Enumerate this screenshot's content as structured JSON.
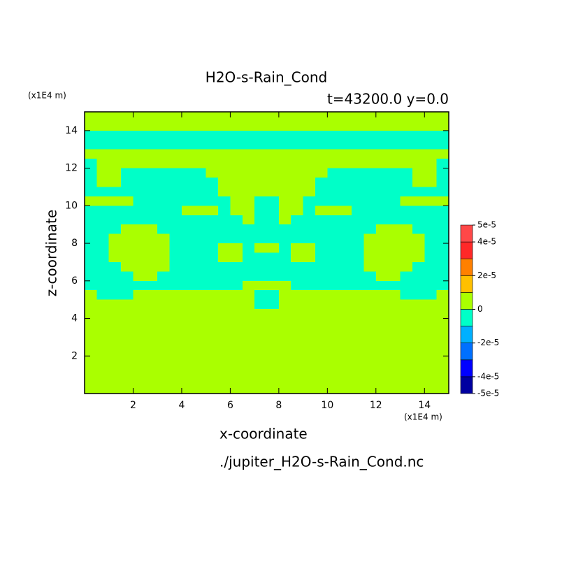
{
  "chart_data": {
    "type": "contour",
    "title": "H2O-s-Rain_Cond",
    "subtitle": "t=43200.0 y=0.0",
    "x_label": "x-coordinate",
    "y_label": "z-coordinate",
    "x_unit": "(x1E4 m)",
    "y_unit": "(x1E4 m)",
    "source": "./jupiter_H2O-s-Rain_Cond.nc",
    "xlim": [
      0,
      15
    ],
    "ylim": [
      0,
      15
    ],
    "xticks": [
      2,
      4,
      6,
      8,
      10,
      12,
      14
    ],
    "yticks": [
      2,
      4,
      6,
      8,
      10,
      12,
      14
    ],
    "x": [
      0.25,
      0.75,
      1.25,
      1.75,
      2.25,
      2.75,
      3.25,
      3.75,
      4.25,
      4.75,
      5.25,
      5.75,
      6.25,
      6.75,
      7.25,
      7.75,
      8.25,
      8.75,
      9.25,
      9.75,
      10.25,
      10.75,
      11.25,
      11.75,
      12.25,
      12.75,
      13.25,
      13.75,
      14.25,
      14.75
    ],
    "y": [
      14.75,
      14.25,
      13.75,
      13.25,
      12.75,
      12.25,
      11.75,
      11.25,
      10.75,
      10.25,
      9.75,
      9.25,
      8.75,
      8.25,
      7.75,
      7.25,
      6.75,
      6.25,
      5.75,
      5.25,
      4.75,
      4.25,
      3.75,
      3.25,
      2.75,
      2.25,
      1.75,
      1.25,
      0.75,
      0.25
    ],
    "z": [
      [
        5e-06,
        5e-06,
        5e-06,
        5e-06,
        5e-06,
        5e-06,
        5e-06,
        5e-06,
        5e-06,
        5e-06,
        5e-06,
        5e-06,
        5e-06,
        5e-06,
        5e-06,
        5e-06,
        5e-06,
        5e-06,
        5e-06,
        5e-06,
        5e-06,
        5e-06,
        5e-06,
        5e-06,
        5e-06,
        5e-06,
        5e-06,
        5e-06,
        5e-06,
        5e-06
      ],
      [
        5e-06,
        5e-06,
        5e-06,
        5e-06,
        5e-06,
        5e-06,
        5e-06,
        5e-06,
        5e-06,
        5e-06,
        5e-06,
        5e-06,
        5e-06,
        5e-06,
        5e-06,
        5e-06,
        5e-06,
        5e-06,
        5e-06,
        5e-06,
        5e-06,
        5e-06,
        5e-06,
        5e-06,
        5e-06,
        5e-06,
        5e-06,
        5e-06,
        5e-06,
        5e-06
      ],
      [
        -5e-06,
        -5e-06,
        -5e-06,
        -5e-06,
        -5e-06,
        -5e-06,
        -5e-06,
        -5e-06,
        -5e-06,
        -5e-06,
        -5e-06,
        -5e-06,
        -5e-06,
        -5e-06,
        -5e-06,
        -5e-06,
        -5e-06,
        -5e-06,
        -5e-06,
        -5e-06,
        -5e-06,
        -5e-06,
        -5e-06,
        -5e-06,
        -5e-06,
        -5e-06,
        -5e-06,
        -5e-06,
        -5e-06,
        -5e-06
      ],
      [
        -5e-06,
        -5e-06,
        -5e-06,
        -5e-06,
        -5e-06,
        -5e-06,
        -5e-06,
        -5e-06,
        -5e-06,
        -5e-06,
        -5e-06,
        -5e-06,
        -5e-06,
        -5e-06,
        -5e-06,
        -5e-06,
        -5e-06,
        -5e-06,
        -5e-06,
        -5e-06,
        -5e-06,
        -5e-06,
        -5e-06,
        -5e-06,
        -5e-06,
        -5e-06,
        -5e-06,
        -5e-06,
        -5e-06,
        -5e-06
      ],
      [
        5e-06,
        5e-06,
        5e-06,
        5e-06,
        5e-06,
        5e-06,
        5e-06,
        5e-06,
        5e-06,
        5e-06,
        5e-06,
        5e-06,
        5e-06,
        5e-06,
        5e-06,
        5e-06,
        5e-06,
        5e-06,
        5e-06,
        5e-06,
        5e-06,
        5e-06,
        5e-06,
        5e-06,
        5e-06,
        5e-06,
        5e-06,
        5e-06,
        5e-06,
        5e-06
      ],
      [
        -5e-06,
        5e-06,
        5e-06,
        5e-06,
        5e-06,
        5e-06,
        5e-06,
        5e-06,
        5e-06,
        5e-06,
        5e-06,
        5e-06,
        5e-06,
        5e-06,
        5e-06,
        5e-06,
        5e-06,
        5e-06,
        5e-06,
        5e-06,
        5e-06,
        5e-06,
        5e-06,
        5e-06,
        5e-06,
        5e-06,
        5e-06,
        5e-06,
        5e-06,
        -5e-06
      ],
      [
        -5e-06,
        5e-06,
        5e-06,
        -5e-06,
        -5e-06,
        -5e-06,
        -5e-06,
        -5e-06,
        -5e-06,
        -5e-06,
        5e-06,
        5e-06,
        5e-06,
        5e-06,
        5e-06,
        5e-06,
        5e-06,
        5e-06,
        5e-06,
        5e-06,
        -5e-06,
        -5e-06,
        -5e-06,
        -5e-06,
        -5e-06,
        -5e-06,
        -5e-06,
        5e-06,
        5e-06,
        -5e-06
      ],
      [
        -5e-06,
        5e-06,
        5e-06,
        -5e-06,
        -5e-06,
        -5e-06,
        -5e-06,
        -5e-06,
        -5e-06,
        -5e-06,
        -5e-06,
        5e-06,
        5e-06,
        5e-06,
        5e-06,
        5e-06,
        5e-06,
        5e-06,
        5e-06,
        -5e-06,
        -5e-06,
        -5e-06,
        -5e-06,
        -5e-06,
        -5e-06,
        -5e-06,
        -5e-06,
        5e-06,
        5e-06,
        -5e-06
      ],
      [
        -5e-06,
        -5e-06,
        -5e-06,
        -5e-06,
        -5e-06,
        -5e-06,
        -5e-06,
        -5e-06,
        -5e-06,
        -5e-06,
        -5e-06,
        5e-06,
        5e-06,
        5e-06,
        5e-06,
        5e-06,
        5e-06,
        5e-06,
        5e-06,
        -5e-06,
        -5e-06,
        -5e-06,
        -5e-06,
        -5e-06,
        -5e-06,
        -5e-06,
        -5e-06,
        -5e-06,
        -5e-06,
        -5e-06
      ],
      [
        5e-06,
        5e-06,
        5e-06,
        5e-06,
        -5e-06,
        -5e-06,
        -5e-06,
        -5e-06,
        -5e-06,
        -5e-06,
        -5e-06,
        -5e-06,
        5e-06,
        5e-06,
        -5e-06,
        -5e-06,
        5e-06,
        5e-06,
        -5e-06,
        -5e-06,
        -5e-06,
        -5e-06,
        -5e-06,
        -5e-06,
        -5e-06,
        -5e-06,
        5e-06,
        5e-06,
        5e-06,
        5e-06
      ],
      [
        -5e-06,
        -5e-06,
        -5e-06,
        -5e-06,
        -5e-06,
        -5e-06,
        -5e-06,
        -5e-06,
        5e-06,
        5e-06,
        5e-06,
        -5e-06,
        5e-06,
        5e-06,
        -5e-06,
        -5e-06,
        5e-06,
        5e-06,
        -5e-06,
        5e-06,
        5e-06,
        5e-06,
        -5e-06,
        -5e-06,
        -5e-06,
        -5e-06,
        -5e-06,
        -5e-06,
        -5e-06,
        -5e-06
      ],
      [
        -5e-06,
        -5e-06,
        -5e-06,
        -5e-06,
        -5e-06,
        -5e-06,
        -5e-06,
        -5e-06,
        -5e-06,
        -5e-06,
        -5e-06,
        -5e-06,
        -5e-06,
        5e-06,
        -5e-06,
        -5e-06,
        5e-06,
        -5e-06,
        -5e-06,
        -5e-06,
        -5e-06,
        -5e-06,
        -5e-06,
        -5e-06,
        -5e-06,
        -5e-06,
        -5e-06,
        -5e-06,
        -5e-06,
        -5e-06
      ],
      [
        -5e-06,
        -5e-06,
        -5e-06,
        5e-06,
        5e-06,
        5e-06,
        -5e-06,
        -5e-06,
        -5e-06,
        -5e-06,
        -5e-06,
        -5e-06,
        -5e-06,
        -5e-06,
        -5e-06,
        -5e-06,
        -5e-06,
        -5e-06,
        -5e-06,
        -5e-06,
        -5e-06,
        -5e-06,
        -5e-06,
        -5e-06,
        5e-06,
        5e-06,
        5e-06,
        -5e-06,
        -5e-06,
        -5e-06
      ],
      [
        -5e-06,
        -5e-06,
        5e-06,
        5e-06,
        5e-06,
        5e-06,
        5e-06,
        -5e-06,
        -5e-06,
        -5e-06,
        -5e-06,
        -5e-06,
        -5e-06,
        -5e-06,
        -5e-06,
        -5e-06,
        -5e-06,
        -5e-06,
        -5e-06,
        -5e-06,
        -5e-06,
        -5e-06,
        -5e-06,
        5e-06,
        5e-06,
        5e-06,
        5e-06,
        5e-06,
        -5e-06,
        -5e-06
      ],
      [
        -5e-06,
        -5e-06,
        5e-06,
        5e-06,
        5e-06,
        5e-06,
        5e-06,
        -5e-06,
        -5e-06,
        -5e-06,
        -5e-06,
        5e-06,
        5e-06,
        -5e-06,
        5e-06,
        5e-06,
        -5e-06,
        5e-06,
        5e-06,
        -5e-06,
        -5e-06,
        -5e-06,
        -5e-06,
        5e-06,
        5e-06,
        5e-06,
        5e-06,
        5e-06,
        -5e-06,
        -5e-06
      ],
      [
        -5e-06,
        -5e-06,
        5e-06,
        5e-06,
        5e-06,
        5e-06,
        5e-06,
        -5e-06,
        -5e-06,
        -5e-06,
        -5e-06,
        5e-06,
        5e-06,
        -5e-06,
        -5e-06,
        -5e-06,
        -5e-06,
        5e-06,
        5e-06,
        -5e-06,
        -5e-06,
        -5e-06,
        -5e-06,
        5e-06,
        5e-06,
        5e-06,
        5e-06,
        5e-06,
        -5e-06,
        -5e-06
      ],
      [
        -5e-06,
        -5e-06,
        -5e-06,
        5e-06,
        5e-06,
        5e-06,
        5e-06,
        -5e-06,
        -5e-06,
        -5e-06,
        -5e-06,
        -5e-06,
        -5e-06,
        -5e-06,
        -5e-06,
        -5e-06,
        -5e-06,
        -5e-06,
        -5e-06,
        -5e-06,
        -5e-06,
        -5e-06,
        -5e-06,
        5e-06,
        5e-06,
        5e-06,
        5e-06,
        -5e-06,
        -5e-06,
        -5e-06
      ],
      [
        -5e-06,
        -5e-06,
        -5e-06,
        -5e-06,
        5e-06,
        5e-06,
        -5e-06,
        -5e-06,
        -5e-06,
        -5e-06,
        -5e-06,
        -5e-06,
        -5e-06,
        -5e-06,
        -5e-06,
        -5e-06,
        -5e-06,
        -5e-06,
        -5e-06,
        -5e-06,
        -5e-06,
        -5e-06,
        -5e-06,
        -5e-06,
        5e-06,
        5e-06,
        -5e-06,
        -5e-06,
        -5e-06,
        -5e-06
      ],
      [
        -5e-06,
        -5e-06,
        -5e-06,
        -5e-06,
        -5e-06,
        -5e-06,
        -5e-06,
        -5e-06,
        -5e-06,
        -5e-06,
        -5e-06,
        -5e-06,
        -5e-06,
        5e-06,
        5e-06,
        5e-06,
        5e-06,
        -5e-06,
        -5e-06,
        -5e-06,
        -5e-06,
        -5e-06,
        -5e-06,
        -5e-06,
        -5e-06,
        -5e-06,
        -5e-06,
        -5e-06,
        -5e-06,
        -5e-06
      ],
      [
        5e-06,
        -5e-06,
        -5e-06,
        -5e-06,
        5e-06,
        5e-06,
        5e-06,
        5e-06,
        5e-06,
        5e-06,
        5e-06,
        5e-06,
        5e-06,
        5e-06,
        -5e-06,
        -5e-06,
        5e-06,
        5e-06,
        5e-06,
        5e-06,
        5e-06,
        5e-06,
        5e-06,
        5e-06,
        5e-06,
        5e-06,
        -5e-06,
        -5e-06,
        -5e-06,
        5e-06
      ],
      [
        5e-06,
        5e-06,
        5e-06,
        5e-06,
        5e-06,
        5e-06,
        5e-06,
        5e-06,
        5e-06,
        5e-06,
        5e-06,
        5e-06,
        5e-06,
        5e-06,
        -5e-06,
        -5e-06,
        5e-06,
        5e-06,
        5e-06,
        5e-06,
        5e-06,
        5e-06,
        5e-06,
        5e-06,
        5e-06,
        5e-06,
        5e-06,
        5e-06,
        5e-06,
        5e-06
      ],
      [
        5e-06,
        5e-06,
        5e-06,
        5e-06,
        5e-06,
        5e-06,
        5e-06,
        5e-06,
        5e-06,
        5e-06,
        5e-06,
        5e-06,
        5e-06,
        5e-06,
        5e-06,
        5e-06,
        5e-06,
        5e-06,
        5e-06,
        5e-06,
        5e-06,
        5e-06,
        5e-06,
        5e-06,
        5e-06,
        5e-06,
        5e-06,
        5e-06,
        5e-06,
        5e-06
      ],
      [
        5e-06,
        5e-06,
        5e-06,
        5e-06,
        5e-06,
        5e-06,
        5e-06,
        5e-06,
        5e-06,
        5e-06,
        5e-06,
        5e-06,
        5e-06,
        5e-06,
        5e-06,
        5e-06,
        5e-06,
        5e-06,
        5e-06,
        5e-06,
        5e-06,
        5e-06,
        5e-06,
        5e-06,
        5e-06,
        5e-06,
        5e-06,
        5e-06,
        5e-06,
        5e-06
      ],
      [
        5e-06,
        5e-06,
        5e-06,
        5e-06,
        5e-06,
        5e-06,
        5e-06,
        5e-06,
        5e-06,
        5e-06,
        5e-06,
        5e-06,
        5e-06,
        5e-06,
        5e-06,
        5e-06,
        5e-06,
        5e-06,
        5e-06,
        5e-06,
        5e-06,
        5e-06,
        5e-06,
        5e-06,
        5e-06,
        5e-06,
        5e-06,
        5e-06,
        5e-06,
        5e-06
      ],
      [
        5e-06,
        5e-06,
        5e-06,
        5e-06,
        5e-06,
        5e-06,
        5e-06,
        5e-06,
        5e-06,
        5e-06,
        5e-06,
        5e-06,
        5e-06,
        5e-06,
        5e-06,
        5e-06,
        5e-06,
        5e-06,
        5e-06,
        5e-06,
        5e-06,
        5e-06,
        5e-06,
        5e-06,
        5e-06,
        5e-06,
        5e-06,
        5e-06,
        5e-06,
        5e-06
      ],
      [
        5e-06,
        5e-06,
        5e-06,
        5e-06,
        5e-06,
        5e-06,
        5e-06,
        5e-06,
        5e-06,
        5e-06,
        5e-06,
        5e-06,
        5e-06,
        5e-06,
        5e-06,
        5e-06,
        5e-06,
        5e-06,
        5e-06,
        5e-06,
        5e-06,
        5e-06,
        5e-06,
        5e-06,
        5e-06,
        5e-06,
        5e-06,
        5e-06,
        5e-06,
        5e-06
      ],
      [
        5e-06,
        5e-06,
        5e-06,
        5e-06,
        5e-06,
        5e-06,
        5e-06,
        5e-06,
        5e-06,
        5e-06,
        5e-06,
        5e-06,
        5e-06,
        5e-06,
        5e-06,
        5e-06,
        5e-06,
        5e-06,
        5e-06,
        5e-06,
        5e-06,
        5e-06,
        5e-06,
        5e-06,
        5e-06,
        5e-06,
        5e-06,
        5e-06,
        5e-06,
        5e-06
      ],
      [
        5e-06,
        5e-06,
        5e-06,
        5e-06,
        5e-06,
        5e-06,
        5e-06,
        5e-06,
        5e-06,
        5e-06,
        5e-06,
        5e-06,
        5e-06,
        5e-06,
        5e-06,
        5e-06,
        5e-06,
        5e-06,
        5e-06,
        5e-06,
        5e-06,
        5e-06,
        5e-06,
        5e-06,
        5e-06,
        5e-06,
        5e-06,
        5e-06,
        5e-06,
        5e-06
      ],
      [
        5e-06,
        5e-06,
        5e-06,
        5e-06,
        5e-06,
        5e-06,
        5e-06,
        5e-06,
        5e-06,
        5e-06,
        5e-06,
        5e-06,
        5e-06,
        5e-06,
        5e-06,
        5e-06,
        5e-06,
        5e-06,
        5e-06,
        5e-06,
        5e-06,
        5e-06,
        5e-06,
        5e-06,
        5e-06,
        5e-06,
        5e-06,
        5e-06,
        5e-06,
        5e-06
      ],
      [
        5e-06,
        5e-06,
        5e-06,
        5e-06,
        5e-06,
        5e-06,
        5e-06,
        5e-06,
        5e-06,
        5e-06,
        5e-06,
        5e-06,
        5e-06,
        5e-06,
        5e-06,
        5e-06,
        5e-06,
        5e-06,
        5e-06,
        5e-06,
        5e-06,
        5e-06,
        5e-06,
        5e-06,
        5e-06,
        5e-06,
        5e-06,
        5e-06,
        5e-06,
        5e-06
      ]
    ],
    "colorbar": {
      "levels": [
        -5e-05,
        -4e-05,
        -3e-05,
        -2e-05,
        -1e-05,
        0,
        1e-05,
        2e-05,
        3e-05,
        4e-05,
        5e-05
      ],
      "colors": [
        "#0000a0",
        "#0000ff",
        "#0070ff",
        "#00b0ff",
        "#00ffc8",
        "#aaff00",
        "#ffc000",
        "#ff8000",
        "#ff2828",
        "#ff4848"
      ],
      "ticks": [
        {
          "value": -5e-05,
          "label": "-5e-5"
        },
        {
          "value": -4e-05,
          "label": "-4e-5"
        },
        {
          "value": -2e-05,
          "label": "-2e-5"
        },
        0,
        {
          "value": 2e-05,
          "label": "2e-5"
        },
        {
          "value": 4e-05,
          "label": "4e-5"
        },
        {
          "value": 5e-05,
          "label": "5e-5"
        }
      ]
    }
  }
}
